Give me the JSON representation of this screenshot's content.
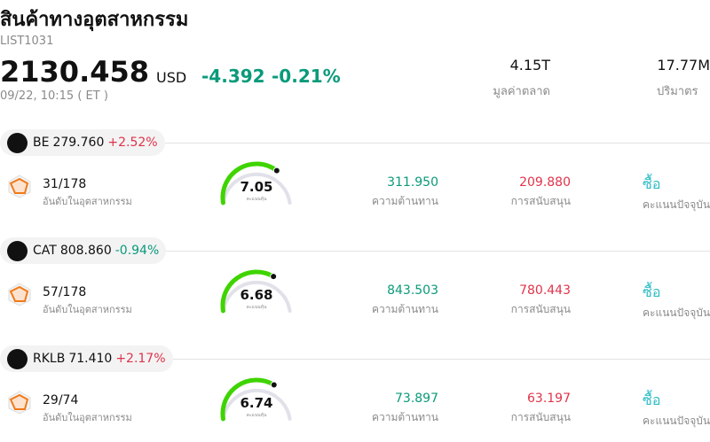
{
  "header": {
    "title": "สินค้าทางอุตสาหกรรม",
    "code": "LIST1031",
    "price": "2130.458",
    "currency": "USD",
    "change": "-4.392",
    "change_pct": "-0.21%",
    "time": "09/22, 10:15  ( ET )"
  },
  "stats": [
    {
      "value": "4.15T",
      "label": "มูลค่าตลาด"
    },
    {
      "value": "17.77M",
      "label": "ปริมาตร"
    }
  ],
  "stocks": [
    {
      "ticker": "BE",
      "price": "279.760",
      "change": "+2.52%",
      "rank": "31/178",
      "rank_label": "อันดับในอุตสาหกรรม",
      "score": "7.05",
      "score_label": "คะแนนหุ้น",
      "resistance": "311.950",
      "resistance_label": "ความต้านทาน",
      "support": "209.880",
      "support_label": "การสนับสนุน",
      "signal": "ซื้อ",
      "signal_label": "คะแนนปัจจุบัน"
    },
    {
      "ticker": "CAT",
      "price": "808.860",
      "change": "-0.94%",
      "rank": "57/178",
      "rank_label": "อันดับในอุตสาหกรรม",
      "score": "6.68",
      "score_label": "คะแนนหุ้น",
      "resistance": "843.503",
      "resistance_label": "ความต้านทาน",
      "support": "780.443",
      "support_label": "การสนับสนุน",
      "signal": "ซื้อ",
      "signal_label": "คะแนนปัจจุบัน"
    },
    {
      "ticker": "RKLB",
      "price": "71.410",
      "change": "+2.17%",
      "rank": "29/74",
      "rank_label": "อันดับในอุตสาหกรรม",
      "score": "6.74",
      "score_label": "คะแนนหุ้น",
      "resistance": "73.897",
      "resistance_label": "ความต้านทาน",
      "support": "63.197",
      "support_label": "การสนับสนุน",
      "signal": "ซื้อ",
      "signal_label": "คะแนนปัจจุบัน"
    }
  ]
}
